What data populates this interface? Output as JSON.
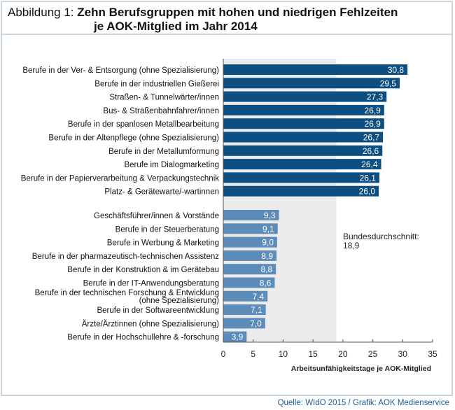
{
  "title": {
    "prefix": "Abbildung 1:",
    "line1": "Zehn Berufsgruppen mit hohen und niedrigen Fehlzeiten",
    "line2": "je AOK-Mitglied im Jahr 2014"
  },
  "source": "Quelle: WIdO 2015 / Grafik: AOK Medienservice",
  "colors": {
    "high": "#0c4f80",
    "low": "#5b8cba",
    "average_area": "#ebebeb",
    "frame": "#c9d6de"
  },
  "chart_data": {
    "type": "bar",
    "orientation": "horizontal",
    "xlabel": "Arbeitsunfähigkeitstage je AOK-Mitglied",
    "xlim": [
      0,
      35
    ],
    "xticks": [
      "0",
      "5",
      "10",
      "15",
      "20",
      "25",
      "30",
      "35"
    ],
    "average": {
      "label": "Bundesdurchschnitt:",
      "value_label": "18,9",
      "value": 18.9
    },
    "series": [
      {
        "name": "high",
        "categories": [
          "Berufe in der Ver- & Entsorgung (ohne Spezialisierung)",
          "Berufe in der industriellen Gießerei",
          "Straßen- & Tunnelwärter/innen",
          "Bus- & Straßenbahnfahrer/innen",
          "Berufe in der spanlosen Metallbearbeitung",
          "Berufe in der Altenpflege (ohne Spezialisierung)",
          "Berufe in der Metallumformung",
          "Berufe im Dialogmarketing",
          "Berufe in der Papierverarbeitung & Verpackungstechnik",
          "Platz- & Gerätewarte/-wartinnen"
        ],
        "values": [
          30.8,
          29.5,
          27.3,
          26.9,
          26.9,
          26.7,
          26.6,
          26.4,
          26.1,
          26.0
        ],
        "value_labels": [
          "30,8",
          "29,5",
          "27,3",
          "26,9",
          "26,9",
          "26,7",
          "26,6",
          "26,4",
          "26,1",
          "26,0"
        ]
      },
      {
        "name": "low",
        "categories": [
          "Geschäftsführer/innen & Vorstände",
          "Berufe in der Steuerberatung",
          "Berufe in Werbung & Marketing",
          "Berufe in der pharmazeutisch-technischen Assistenz",
          "Berufe in der Konstruktion & im Gerätebau",
          "Berufe in der IT-Anwendungsberatung",
          "Berufe in der technischen Forschung & Entwicklung\n(ohne Spezialisierung)",
          "Berufe in der Softwareentwicklung",
          "Ärzte/Ärztinnen (ohne Spezialisierung)",
          "Berufe in der Hochschullehre & -forschung"
        ],
        "values": [
          9.3,
          9.1,
          9.0,
          8.9,
          8.8,
          8.6,
          7.4,
          7.1,
          7.0,
          3.9
        ],
        "value_labels": [
          "9,3",
          "9,1",
          "9,0",
          "8,9",
          "8,8",
          "8,6",
          "7,4",
          "7,1",
          "7,0",
          "3,9"
        ]
      }
    ]
  }
}
